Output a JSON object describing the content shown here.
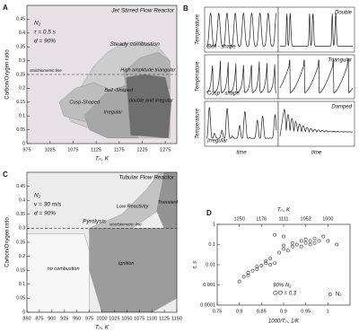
{
  "chart_data": [
    {
      "type": "region",
      "panel": "A",
      "title": "Jet Stirred Flow Reactor",
      "x_label": "Tᵢₙ, K",
      "y_label": "Carbon/Oxygen ratio",
      "annotations": [
        "N₂",
        "τ = 0.5 s",
        "d = 90%"
      ],
      "xlim": [
        975,
        1300
      ],
      "xticks": [
        975,
        1025,
        1075,
        1125,
        1175,
        1225,
        1275
      ],
      "ylim": [
        0,
        0.5
      ],
      "yticks": [
        0,
        0.05,
        0.1,
        0.15,
        0.2,
        0.25,
        0.3,
        0.35,
        0.4,
        0.45
      ],
      "stoich": {
        "label": "stoichiometric line",
        "value": 0.25
      },
      "background": {
        "name": "Steady combustion",
        "color": "#e7e1e5"
      },
      "regions": [
        {
          "name": "Bell -Shaped",
          "color": "#cdcdcd",
          "x": [
            1060,
            1090,
            1120,
            1150,
            1180,
            1220,
            1260,
            1285,
            1285,
            1240,
            1180,
            1120,
            1070
          ],
          "y": [
            0.12,
            0.2,
            0.28,
            0.33,
            0.36,
            0.37,
            0.35,
            0.3,
            0.02,
            0.02,
            0.02,
            0.05,
            0.08
          ]
        },
        {
          "name": "High amplitude triangular",
          "color": "#b3b3b3",
          "x": [
            1185,
            1220,
            1260,
            1285,
            1285,
            1190
          ],
          "y": [
            0.26,
            0.31,
            0.33,
            0.3,
            0.2,
            0.2
          ]
        },
        {
          "name": "Cusp-Shaped",
          "color": "#bdbdbd",
          "x": [
            1045,
            1080,
            1120,
            1150,
            1150,
            1100,
            1055
          ],
          "y": [
            0.15,
            0.2,
            0.22,
            0.2,
            0.1,
            0.08,
            0.1
          ]
        },
        {
          "name": "Irregular",
          "color": "#a7a7a7",
          "x": [
            1100,
            1150,
            1190,
            1215,
            1215,
            1150,
            1110
          ],
          "y": [
            0.1,
            0.19,
            0.21,
            0.2,
            0.02,
            0.02,
            0.05
          ]
        },
        {
          "name": "double and irregular",
          "color": "#6e6e6e",
          "x": [
            1190,
            1230,
            1275,
            1288,
            1282,
            1200
          ],
          "y": [
            0.24,
            0.25,
            0.24,
            0.15,
            0.02,
            0.03
          ]
        }
      ]
    },
    {
      "type": "waveform",
      "panel": "B",
      "y_label": "Temperature",
      "x_label": "time",
      "traces": [
        "Bell - shape",
        "Cusp - shape",
        "Irregular",
        "Double",
        "Triangular",
        "Damped"
      ]
    },
    {
      "type": "region",
      "panel": "C",
      "title": "Tubular Flow Reactor",
      "x_label": "Tᵢₙ, K",
      "y_label": "Carbon/Oxygen ratio",
      "annotations": [
        "N₂",
        "v = 30 m/s",
        "d = 90%"
      ],
      "xlim": [
        850,
        1150
      ],
      "xticks": [
        850,
        875,
        900,
        925,
        950,
        975,
        1000,
        1025,
        1050,
        1075,
        1100,
        1125,
        1150
      ],
      "ylim": [
        0,
        0.5
      ],
      "yticks": [
        0,
        0.05,
        0.1,
        0.15,
        0.2,
        0.25,
        0.3,
        0.35,
        0.4,
        0.45
      ],
      "stoich": {
        "label": "stoichiometric line",
        "value": 0.3
      },
      "background": {
        "name": "Pyrolysis",
        "color": "#ececec"
      },
      "regions": [
        {
          "name": "no combustion",
          "color": "#f7f7f7",
          "x": [
            850,
            965,
            975,
            975,
            850
          ],
          "y": [
            0.28,
            0.28,
            0.22,
            0,
            0
          ]
        },
        {
          "name": "Low Reactivity",
          "color": "#c2c2c2",
          "x": [
            975,
            1040,
            1090,
            1115,
            1125,
            1110,
            1060,
            975
          ],
          "y": [
            0.3,
            0.35,
            0.44,
            0.5,
            0.5,
            0.36,
            0.3,
            0.28
          ]
        },
        {
          "name": "Transient",
          "color": "#939393",
          "x": [
            1110,
            1125,
            1150,
            1150,
            1125
          ],
          "y": [
            0.36,
            0.5,
            0.5,
            0.3,
            0.3
          ]
        },
        {
          "name": "Ignition",
          "color": "#9c9c9c",
          "x": [
            975,
            990,
            1050,
            1150,
            1150,
            1100,
            1000,
            975
          ],
          "y": [
            0.3,
            0.3,
            0.3,
            0.3,
            0.05,
            0,
            0,
            0.15
          ]
        }
      ]
    },
    {
      "type": "scatter",
      "panel": "D",
      "x_label": "1000/Tᵢₙ, 1/K",
      "y_label": "τ, s",
      "x2_label": "Tᵢₙ, K",
      "annotations": [
        "90% N₂",
        "C/O = 0.3"
      ],
      "log_y": true,
      "xlim": [
        0.75,
        1.05
      ],
      "xticks": [
        0.75,
        0.8,
        0.85,
        0.9,
        0.95,
        1
      ],
      "x2ticks": [
        {
          "value": 0.8,
          "label": "1250"
        },
        {
          "value": 0.85,
          "label": "1176"
        },
        {
          "value": 0.9,
          "label": "1111"
        },
        {
          "value": 0.95,
          "label": "1052"
        },
        {
          "value": 1,
          "label": "1000"
        }
      ],
      "ylim": [
        0.0001,
        1
      ],
      "yticks": [
        0.0001,
        0.001,
        0.01,
        0.1,
        1
      ],
      "series": [
        {
          "name": "N₂",
          "color": "#333333",
          "x": [
            0.8,
            0.81,
            0.82,
            0.82,
            0.83,
            0.84,
            0.84,
            0.85,
            0.86,
            0.86,
            0.87,
            0.87,
            0.88,
            0.89,
            0.9,
            0.9,
            0.91,
            0.92,
            0.92,
            0.93,
            0.94,
            0.94,
            0.95,
            0.95,
            0.96,
            0.96,
            0.97,
            0.97,
            0.98,
            0.99,
            1.0,
            1.02,
            0.88,
            0.9
          ],
          "values": [
            0.0015,
            0.0025,
            0.004,
            0.003,
            0.005,
            0.006,
            0.008,
            0.009,
            0.012,
            0.015,
            0.01,
            0.02,
            0.012,
            0.04,
            0.06,
            0.09,
            0.05,
            0.08,
            0.12,
            0.1,
            0.08,
            0.15,
            0.12,
            0.18,
            0.1,
            0.15,
            0.2,
            0.12,
            0.15,
            0.25,
            0.15,
            0.1,
            0.3,
            0.25
          ]
        }
      ]
    }
  ]
}
